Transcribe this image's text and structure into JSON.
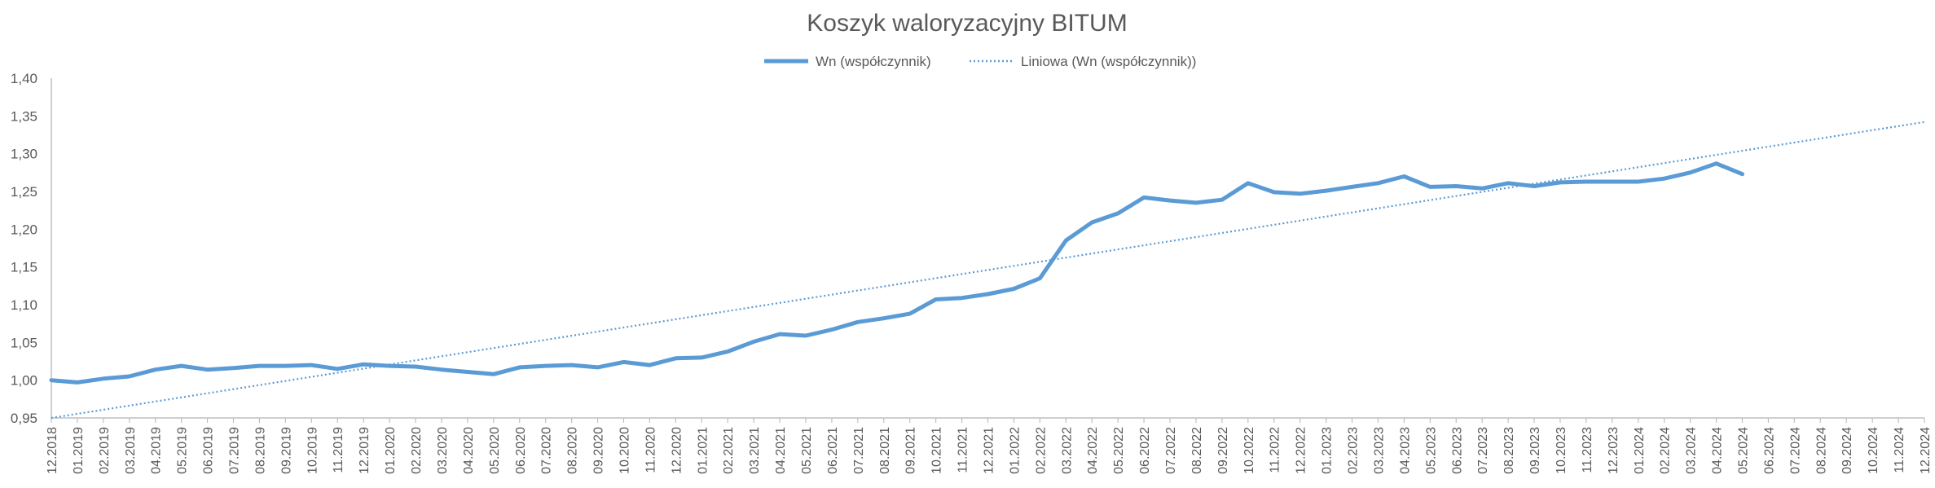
{
  "chart_data": {
    "type": "line",
    "title": "Koszyk waloryzacyjny BITUM",
    "xlabel": "",
    "ylabel": "",
    "ylim": [
      0.95,
      1.4
    ],
    "y_ticks": [
      "0,95",
      "1,00",
      "1,05",
      "1,10",
      "1,15",
      "1,20",
      "1,25",
      "1,30",
      "1,35",
      "1,40"
    ],
    "grid": false,
    "legend_position": "top-center",
    "categories": [
      "12.2018",
      "01.2019",
      "02.2019",
      "03.2019",
      "04.2019",
      "05.2019",
      "06.2019",
      "07.2019",
      "08.2019",
      "09.2019",
      "10.2019",
      "11.2019",
      "12.2019",
      "01.2020",
      "02.2020",
      "03.2020",
      "04.2020",
      "05.2020",
      "06.2020",
      "07.2020",
      "08.2020",
      "09.2020",
      "10.2020",
      "11.2020",
      "12.2020",
      "01.2021",
      "02.2021",
      "03.2021",
      "04.2021",
      "05.2021",
      "06.2021",
      "07.2021",
      "08.2021",
      "09.2021",
      "10.2021",
      "11.2021",
      "12.2021",
      "01.2022",
      "02.2022",
      "03.2022",
      "04.2022",
      "05.2022",
      "06.2022",
      "07.2022",
      "08.2022",
      "09.2022",
      "10.2022",
      "11.2022",
      "12.2022",
      "01.2023",
      "02.2023",
      "03.2023",
      "04.2023",
      "05.2023",
      "06.2023",
      "07.2023",
      "08.2023",
      "09.2023",
      "10.2023",
      "11.2023",
      "12.2023",
      "01.2024",
      "02.2024",
      "03.2024",
      "04.2024",
      "05.2024",
      "06.2024",
      "07.2024",
      "08.2024",
      "09.2024",
      "10.2024",
      "11.2024",
      "12.2024"
    ],
    "series": [
      {
        "name": "Wn (współczynnik)",
        "color": "#5B9BD5",
        "style": "solid",
        "values": [
          1.0,
          0.997,
          1.002,
          1.005,
          1.014,
          1.019,
          1.014,
          1.016,
          1.019,
          1.019,
          1.02,
          1.015,
          1.021,
          1.019,
          1.018,
          1.014,
          1.011,
          1.008,
          1.017,
          1.019,
          1.02,
          1.017,
          1.024,
          1.02,
          1.029,
          1.03,
          1.038,
          1.051,
          1.061,
          1.059,
          1.067,
          1.077,
          1.082,
          1.088,
          1.107,
          1.109,
          1.114,
          1.121,
          1.135,
          1.185,
          1.209,
          1.221,
          1.242,
          1.238,
          1.235,
          1.239,
          1.261,
          1.249,
          1.247,
          1.251,
          1.256,
          1.261,
          1.27,
          1.256,
          1.257,
          1.254,
          1.261,
          1.257,
          1.262,
          1.263,
          1.263,
          1.263,
          1.267,
          1.275,
          1.287,
          1.273,
          null,
          null,
          null,
          null,
          null,
          null,
          null
        ]
      },
      {
        "name": "Liniowa (Wn (współczynnik))",
        "color": "#5B9BD5",
        "style": "dotted",
        "trend_start": 0.95,
        "trend_end": 1.342
      }
    ]
  }
}
